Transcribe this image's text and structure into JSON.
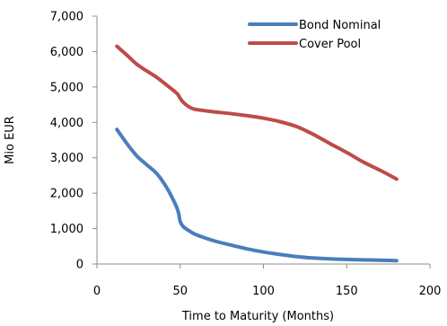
{
  "chart_data": {
    "type": "line",
    "title": "",
    "xlabel": "Time to Maturity (Months)",
    "ylabel": "Mio EUR",
    "xlim": [
      0,
      200
    ],
    "ylim": [
      0,
      7000
    ],
    "x_ticks": [
      0,
      50,
      100,
      150,
      200
    ],
    "y_ticks": [
      0,
      1000,
      2000,
      3000,
      4000,
      5000,
      6000,
      7000
    ],
    "x_tick_labels": [
      "0",
      "50",
      "100",
      "150",
      "200"
    ],
    "y_tick_labels": [
      "0",
      "1,000",
      "2,000",
      "3,000",
      "4,000",
      "5,000",
      "6,000",
      "7,000"
    ],
    "grid": false,
    "legend_position": "top-right",
    "series": [
      {
        "name": "Bond Nominal",
        "color": "#4a7ebb",
        "points": [
          [
            12,
            3800
          ],
          [
            18,
            3400
          ],
          [
            24,
            3050
          ],
          [
            30,
            2800
          ],
          [
            36,
            2550
          ],
          [
            42,
            2150
          ],
          [
            47,
            1700
          ],
          [
            49,
            1450
          ],
          [
            50,
            1200
          ],
          [
            52,
            1050
          ],
          [
            56,
            920
          ],
          [
            60,
            820
          ],
          [
            70,
            660
          ],
          [
            80,
            540
          ],
          [
            90,
            430
          ],
          [
            100,
            340
          ],
          [
            110,
            270
          ],
          [
            120,
            210
          ],
          [
            130,
            170
          ],
          [
            140,
            145
          ],
          [
            150,
            130
          ],
          [
            160,
            118
          ],
          [
            170,
            108
          ],
          [
            180,
            95
          ]
        ]
      },
      {
        "name": "Cover Pool",
        "color": "#be4b48",
        "points": [
          [
            12,
            6150
          ],
          [
            18,
            5900
          ],
          [
            24,
            5640
          ],
          [
            30,
            5450
          ],
          [
            36,
            5270
          ],
          [
            42,
            5050
          ],
          [
            48,
            4820
          ],
          [
            50,
            4680
          ],
          [
            52,
            4560
          ],
          [
            56,
            4420
          ],
          [
            60,
            4360
          ],
          [
            70,
            4300
          ],
          [
            80,
            4250
          ],
          [
            90,
            4190
          ],
          [
            100,
            4120
          ],
          [
            110,
            4020
          ],
          [
            120,
            3880
          ],
          [
            130,
            3660
          ],
          [
            140,
            3400
          ],
          [
            150,
            3150
          ],
          [
            160,
            2880
          ],
          [
            170,
            2650
          ],
          [
            180,
            2400
          ]
        ]
      }
    ]
  }
}
